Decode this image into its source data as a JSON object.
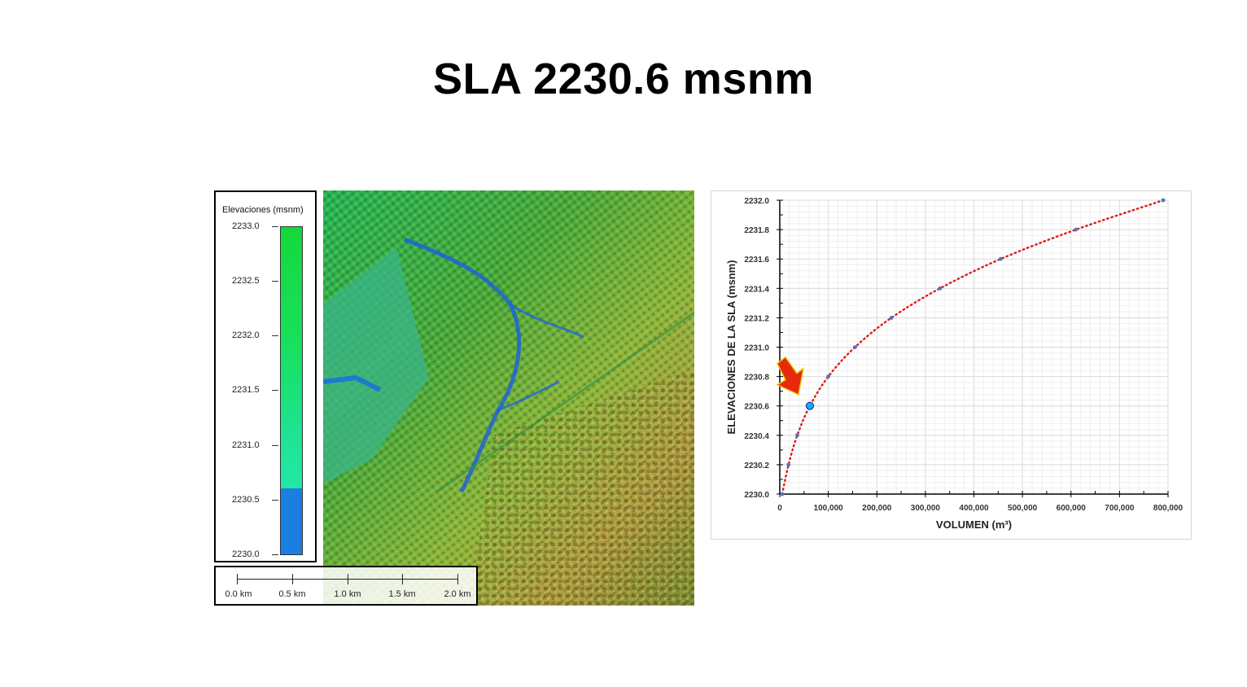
{
  "title": "SLA 2230.6 msnm",
  "legend": {
    "title": "Elevaciones (msnm)",
    "ticks": [
      "2233.0",
      "2232.5",
      "2232.0",
      "2231.5",
      "2231.0",
      "2230.5",
      "2230.0"
    ],
    "colors": {
      "high": "#16d83a",
      "mid": "#22e8a6",
      "low": "#1a7fe0"
    },
    "threshold": 2230.6
  },
  "scale_bar": {
    "labels": [
      "0.0 km",
      "0.5 km",
      "1.0 km",
      "1.5 km",
      "2.0 km"
    ]
  },
  "chart_data": {
    "type": "scatter",
    "xlabel": "VOLUMEN (m³)",
    "ylabel": "ELEVACIONES DE LA SLA (msnm)",
    "xlim": [
      0,
      800000
    ],
    "ylim": [
      2230.0,
      2232.0
    ],
    "x_ticks": [
      "0",
      "100,000",
      "200,000",
      "300,000",
      "400,000",
      "500,000",
      "600,000",
      "700,000",
      "800,000"
    ],
    "y_ticks": [
      "2230.0",
      "2230.2",
      "2230.4",
      "2230.6",
      "2230.8",
      "2231.0",
      "2231.2",
      "2231.4",
      "2231.6",
      "2231.8",
      "2232.0"
    ],
    "grid": true,
    "series": [
      {
        "style": "points",
        "color": "#4a78c8",
        "x": [
          5000,
          18000,
          36000,
          62000,
          100000,
          155000,
          230000,
          330000,
          455000,
          610000,
          790000
        ],
        "y": [
          2230.0,
          2230.2,
          2230.4,
          2230.6,
          2230.8,
          2231.0,
          2231.2,
          2231.4,
          2231.6,
          2231.8,
          2232.0
        ]
      }
    ],
    "trendline": {
      "style": "dotted",
      "color": "#e01b1b"
    },
    "highlight": {
      "x": 62000,
      "y": 2230.6,
      "color": "#1ea7ff",
      "arrow_color": "#e62a0e"
    }
  }
}
